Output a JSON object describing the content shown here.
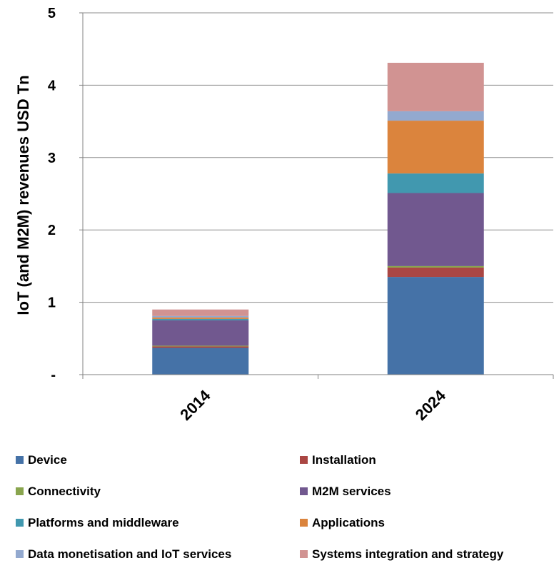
{
  "chart_data": {
    "type": "bar",
    "stacked": true,
    "title": "",
    "xlabel": "",
    "ylabel": "IoT (and M2M) revenues USD Tn",
    "ylim": [
      0,
      5
    ],
    "yticks": [
      {
        "value": 0,
        "label": "-"
      },
      {
        "value": 1,
        "label": "1"
      },
      {
        "value": 2,
        "label": "2"
      },
      {
        "value": 3,
        "label": "3"
      },
      {
        "value": 4,
        "label": "4"
      },
      {
        "value": 5,
        "label": "5"
      }
    ],
    "grid": true,
    "legend_position": "bottom",
    "categories": [
      "2014",
      "2024"
    ],
    "series": [
      {
        "name": "Device",
        "color": "#4572A7",
        "values": [
          0.37,
          1.35
        ]
      },
      {
        "name": "Installation",
        "color": "#AA4643",
        "values": [
          0.02,
          0.13
        ]
      },
      {
        "name": "Connectivity",
        "color": "#89A54E",
        "values": [
          0.01,
          0.02
        ]
      },
      {
        "name": "M2M services",
        "color": "#71588F",
        "values": [
          0.35,
          1.01
        ]
      },
      {
        "name": "Platforms and middleware",
        "color": "#4198AF",
        "values": [
          0.02,
          0.27
        ]
      },
      {
        "name": "Applications",
        "color": "#DB843D",
        "values": [
          0.02,
          0.73
        ]
      },
      {
        "name": "Data monetisation and IoT services",
        "color": "#93A9CF",
        "values": [
          0.02,
          0.13
        ]
      },
      {
        "name": "Systems integration and strategy",
        "color": "#D19392",
        "values": [
          0.09,
          0.67
        ]
      }
    ]
  }
}
